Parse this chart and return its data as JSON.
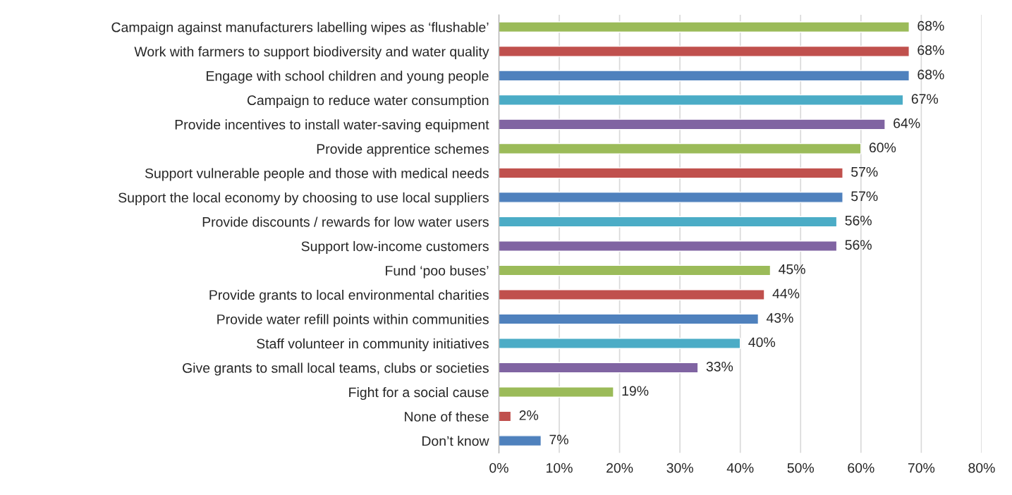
{
  "chart_data": {
    "type": "bar",
    "orientation": "horizontal",
    "categories": [
      "Campaign against manufacturers labelling wipes as ‘flushable’",
      "Work with farmers to support biodiversity and water quality",
      "Engage with school children and young people",
      "Campaign to reduce water consumption",
      "Provide incentives to install water-saving equipment",
      "Provide apprentice schemes",
      "Support vulnerable people and those with medical needs",
      "Support the local economy by choosing to use local suppliers",
      "Provide discounts / rewards for low water users",
      "Support low-income customers",
      "Fund ‘poo buses’",
      "Provide grants to local environmental charities",
      "Provide water refill points within communities",
      "Staff volunteer in community initiatives",
      "Give grants to small local teams, clubs or societies",
      "Fight for a social cause",
      "None of these",
      "Don’t know"
    ],
    "values": [
      68,
      68,
      68,
      67,
      64,
      60,
      57,
      57,
      56,
      56,
      45,
      44,
      43,
      40,
      33,
      19,
      2,
      7
    ],
    "colors": [
      "#9bbb59",
      "#c0504d",
      "#4f81bd",
      "#4bacc6",
      "#8064a2",
      "#9bbb59",
      "#c0504d",
      "#4f81bd",
      "#4bacc6",
      "#8064a2",
      "#9bbb59",
      "#c0504d",
      "#4f81bd",
      "#4bacc6",
      "#8064a2",
      "#9bbb59",
      "#c0504d",
      "#4f81bd"
    ],
    "value_labels": [
      "68%",
      "68%",
      "68%",
      "67%",
      "64%",
      "60%",
      "57%",
      "57%",
      "56%",
      "56%",
      "45%",
      "44%",
      "43%",
      "40%",
      "33%",
      "19%",
      "2%",
      "7%"
    ],
    "xlim": [
      0,
      80
    ],
    "xticks": [
      {
        "value": 0,
        "label": "0%"
      },
      {
        "value": 10,
        "label": "10%"
      },
      {
        "value": 20,
        "label": "20%"
      },
      {
        "value": 30,
        "label": "30%"
      },
      {
        "value": 40,
        "label": "40%"
      },
      {
        "value": 50,
        "label": "50%"
      },
      {
        "value": 60,
        "label": "60%"
      },
      {
        "value": 70,
        "label": "70%"
      },
      {
        "value": 80,
        "label": "80%"
      }
    ],
    "grid": "x",
    "legend": false
  }
}
